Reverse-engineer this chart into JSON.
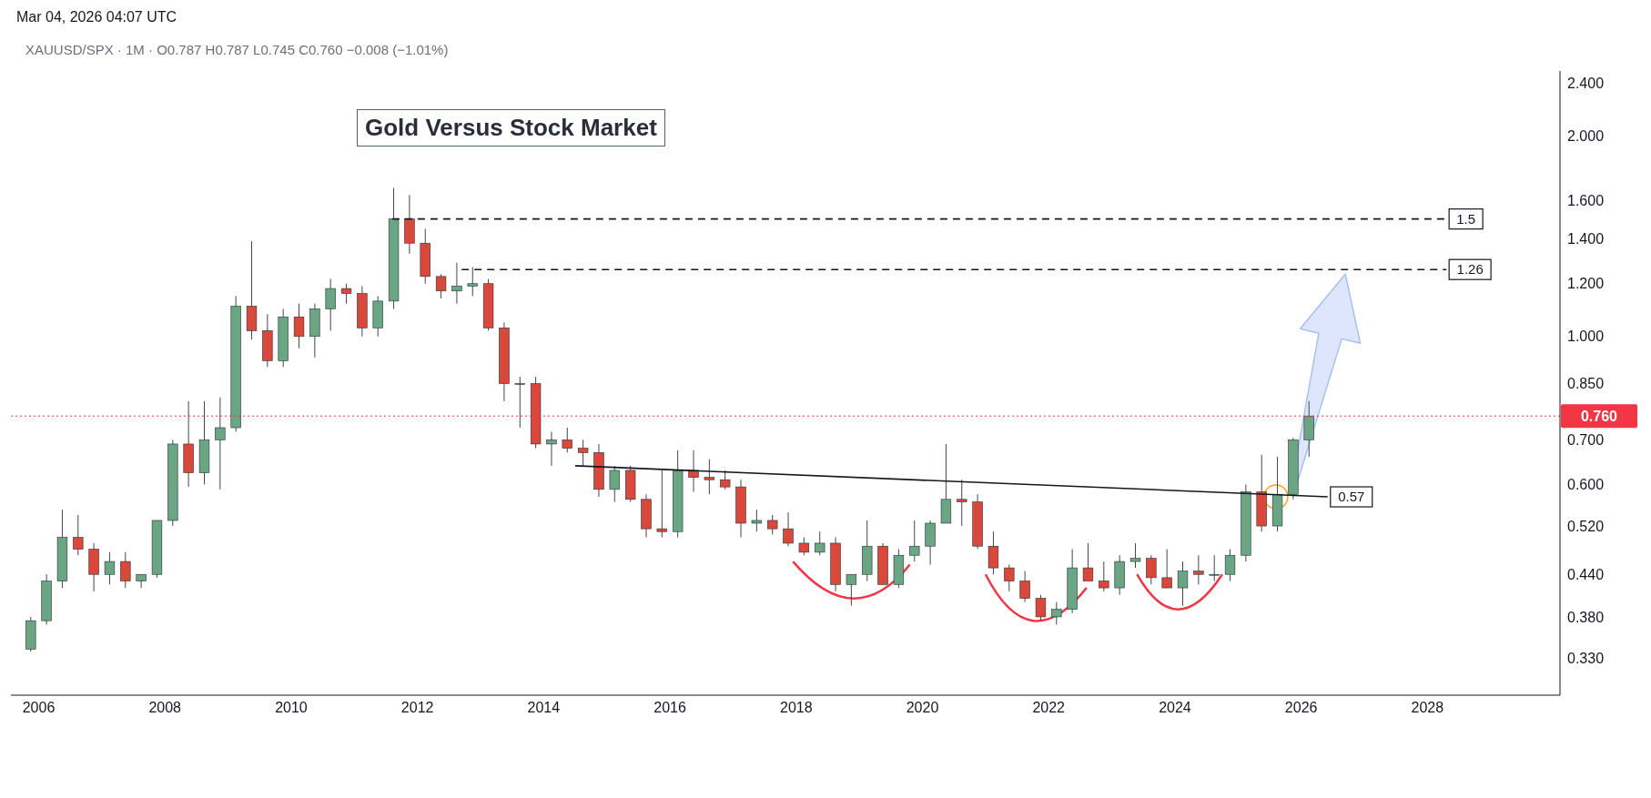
{
  "chart_data": {
    "type": "candlestick",
    "title": "Gold Versus Stock Market",
    "subtitle": "XAUUSD/SPX · 1M · O0.787 H0.787 L0.745 C0.760 −0.008 (−1.01%)",
    "annotations": [
      "Mar 04, 2026 04:07 UTC",
      "1.5",
      "1.26",
      "0.57"
    ],
    "log": true,
    "xlim": [
      2005.56,
      2030.1
    ],
    "xticks": [
      2006,
      2008,
      2010,
      2012,
      2014,
      2016,
      2018,
      2020,
      2022,
      2024,
      2026,
      2028
    ],
    "ylim": [
      0.29,
      2.5
    ],
    "yticks": [
      {
        "value": 0.33,
        "label": "0.330"
      },
      {
        "value": 0.38,
        "label": "0.380"
      },
      {
        "value": 0.44,
        "label": "0.440"
      },
      {
        "value": 0.52,
        "label": "0.520"
      },
      {
        "value": 0.6,
        "label": "0.600"
      },
      {
        "value": 0.7,
        "label": "0.700"
      },
      {
        "value": 0.85,
        "label": "0.850"
      },
      {
        "value": 1,
        "label": "1.000"
      },
      {
        "value": 1.2,
        "label": "1.200"
      },
      {
        "value": 1.4,
        "label": "1.400"
      },
      {
        "value": 1.6,
        "label": "1.600"
      },
      {
        "value": 2,
        "label": "2.000"
      },
      {
        "value": 2.4,
        "label": "2.400"
      }
    ],
    "ref_lines": [
      {
        "axis": "y",
        "value": 0.76,
        "label": "0.760",
        "color": "#f23645",
        "line_style": "dotted"
      }
    ],
    "x": [
      2005.875,
      2006.125,
      2006.375,
      2006.625,
      2006.875,
      2007.125,
      2007.375,
      2007.625,
      2007.875,
      2008.125,
      2008.375,
      2008.625,
      2008.875,
      2009.125,
      2009.375,
      2009.625,
      2009.875,
      2010.125,
      2010.375,
      2010.625,
      2010.875,
      2011.125,
      2011.375,
      2011.625,
      2011.875,
      2012.125,
      2012.375,
      2012.625,
      2012.875,
      2013.125,
      2013.375,
      2013.625,
      2013.875,
      2014.125,
      2014.375,
      2014.625,
      2014.875,
      2015.125,
      2015.375,
      2015.625,
      2015.875,
      2016.125,
      2016.375,
      2016.625,
      2016.875,
      2017.125,
      2017.375,
      2017.625,
      2017.875,
      2018.125,
      2018.375,
      2018.625,
      2018.875,
      2019.125,
      2019.375,
      2019.625,
      2019.875,
      2020.125,
      2020.375,
      2020.625,
      2020.875,
      2021.125,
      2021.375,
      2021.625,
      2021.875,
      2022.125,
      2022.375,
      2022.625,
      2022.875,
      2023.125,
      2023.375,
      2023.625,
      2023.875,
      2024.125,
      2024.375,
      2024.625,
      2024.875,
      2025.125,
      2025.375,
      2025.625,
      2025.875,
      2026.125
    ],
    "ohlc": [
      [
        0.34,
        0.38,
        0.337,
        0.375
      ],
      [
        0.375,
        0.44,
        0.37,
        0.43
      ],
      [
        0.43,
        0.55,
        0.42,
        0.5
      ],
      [
        0.5,
        0.54,
        0.47,
        0.48
      ],
      [
        0.48,
        0.49,
        0.415,
        0.44
      ],
      [
        0.44,
        0.475,
        0.425,
        0.46
      ],
      [
        0.46,
        0.475,
        0.42,
        0.43
      ],
      [
        0.43,
        0.44,
        0.42,
        0.44
      ],
      [
        0.44,
        0.53,
        0.435,
        0.53
      ],
      [
        0.53,
        0.7,
        0.52,
        0.69
      ],
      [
        0.69,
        0.8,
        0.595,
        0.625
      ],
      [
        0.625,
        0.8,
        0.6,
        0.7
      ],
      [
        0.7,
        0.81,
        0.59,
        0.73
      ],
      [
        0.73,
        1.15,
        0.72,
        1.11
      ],
      [
        1.11,
        1.39,
        0.99,
        1.02
      ],
      [
        1.02,
        1.08,
        0.9,
        0.92
      ],
      [
        0.92,
        1.1,
        0.9,
        1.07
      ],
      [
        1.07,
        1.12,
        0.96,
        1.0
      ],
      [
        1.0,
        1.12,
        0.93,
        1.1
      ],
      [
        1.1,
        1.22,
        1.02,
        1.18
      ],
      [
        1.18,
        1.2,
        1.12,
        1.16
      ],
      [
        1.16,
        1.19,
        1.0,
        1.03
      ],
      [
        1.03,
        1.15,
        1.0,
        1.13
      ],
      [
        1.13,
        1.67,
        1.1,
        1.5
      ],
      [
        1.5,
        1.63,
        1.33,
        1.38
      ],
      [
        1.38,
        1.45,
        1.2,
        1.23
      ],
      [
        1.23,
        1.24,
        1.14,
        1.17
      ],
      [
        1.17,
        1.29,
        1.12,
        1.19
      ],
      [
        1.19,
        1.27,
        1.15,
        1.2
      ],
      [
        1.2,
        1.22,
        1.02,
        1.03
      ],
      [
        1.03,
        1.05,
        0.8,
        0.85
      ],
      [
        0.85,
        0.87,
        0.73,
        0.85
      ],
      [
        0.85,
        0.87,
        0.68,
        0.69
      ],
      [
        0.69,
        0.72,
        0.64,
        0.7
      ],
      [
        0.7,
        0.73,
        0.67,
        0.68
      ],
      [
        0.68,
        0.7,
        0.64,
        0.67
      ],
      [
        0.67,
        0.69,
        0.575,
        0.59
      ],
      [
        0.59,
        0.64,
        0.565,
        0.63
      ],
      [
        0.63,
        0.64,
        0.565,
        0.57
      ],
      [
        0.57,
        0.58,
        0.5,
        0.515
      ],
      [
        0.515,
        0.63,
        0.5,
        0.51
      ],
      [
        0.51,
        0.675,
        0.5,
        0.63
      ],
      [
        0.63,
        0.675,
        0.585,
        0.615
      ],
      [
        0.615,
        0.655,
        0.58,
        0.61
      ],
      [
        0.61,
        0.63,
        0.59,
        0.595
      ],
      [
        0.595,
        0.61,
        0.5,
        0.525
      ],
      [
        0.525,
        0.55,
        0.51,
        0.53
      ],
      [
        0.53,
        0.54,
        0.505,
        0.515
      ],
      [
        0.515,
        0.545,
        0.485,
        0.49
      ],
      [
        0.49,
        0.5,
        0.47,
        0.475
      ],
      [
        0.475,
        0.51,
        0.47,
        0.49
      ],
      [
        0.49,
        0.5,
        0.415,
        0.425
      ],
      [
        0.425,
        0.44,
        0.395,
        0.44
      ],
      [
        0.44,
        0.53,
        0.43,
        0.485
      ],
      [
        0.485,
        0.49,
        0.425,
        0.425
      ],
      [
        0.425,
        0.48,
        0.42,
        0.47
      ],
      [
        0.47,
        0.53,
        0.46,
        0.485
      ],
      [
        0.485,
        0.53,
        0.455,
        0.525
      ],
      [
        0.525,
        0.69,
        0.525,
        0.57
      ],
      [
        0.57,
        0.61,
        0.52,
        0.565
      ],
      [
        0.565,
        0.58,
        0.48,
        0.485
      ],
      [
        0.485,
        0.51,
        0.44,
        0.45
      ],
      [
        0.45,
        0.455,
        0.415,
        0.43
      ],
      [
        0.43,
        0.445,
        0.4,
        0.405
      ],
      [
        0.405,
        0.41,
        0.375,
        0.38
      ],
      [
        0.38,
        0.4,
        0.37,
        0.39
      ],
      [
        0.39,
        0.48,
        0.385,
        0.45
      ],
      [
        0.45,
        0.49,
        0.43,
        0.43
      ],
      [
        0.43,
        0.46,
        0.415,
        0.42
      ],
      [
        0.42,
        0.47,
        0.41,
        0.46
      ],
      [
        0.46,
        0.49,
        0.45,
        0.465
      ],
      [
        0.465,
        0.47,
        0.425,
        0.435
      ],
      [
        0.435,
        0.48,
        0.42,
        0.42
      ],
      [
        0.42,
        0.46,
        0.395,
        0.445
      ],
      [
        0.445,
        0.47,
        0.425,
        0.44
      ],
      [
        0.44,
        0.47,
        0.43,
        0.44
      ],
      [
        0.44,
        0.48,
        0.43,
        0.47
      ],
      [
        0.47,
        0.6,
        0.46,
        0.585
      ],
      [
        0.585,
        0.665,
        0.51,
        0.52
      ],
      [
        0.52,
        0.66,
        0.51,
        0.58
      ],
      [
        0.58,
        0.705,
        0.57,
        0.7
      ],
      [
        0.7,
        0.8,
        0.66,
        0.76
      ]
    ],
    "series": [
      {
        "type": "line",
        "color": "#131722",
        "line_style": "dashed",
        "x": [
          2011.6,
          2028.3
        ],
        "values": [
          1.5,
          1.5
        ]
      },
      {
        "type": "line",
        "color": "#131722",
        "line_style": "dashed",
        "x": [
          2012.7,
          2028.3
        ],
        "values": [
          1.26,
          1.26
        ]
      },
      {
        "type": "line",
        "color": "#131722",
        "line_style": "solid",
        "x": [
          2014.5,
          2026.42
        ],
        "values": [
          0.64,
          0.575
        ]
      }
    ]
  }
}
